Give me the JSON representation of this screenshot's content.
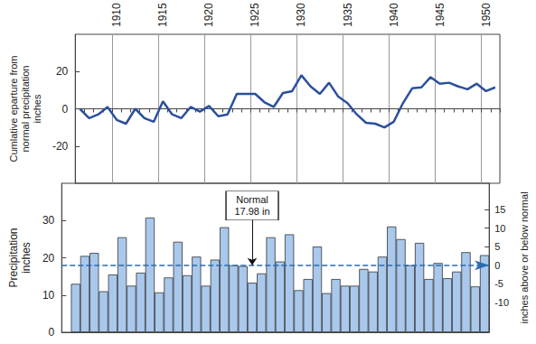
{
  "chart_data": [
    {
      "type": "line",
      "ylabel": "Cumlative eparture from\nnormal precipitation\ninches",
      "categories": [
        1906,
        1907,
        1908,
        1909,
        1910,
        1911,
        1912,
        1913,
        1914,
        1915,
        1916,
        1917,
        1918,
        1919,
        1920,
        1921,
        1922,
        1923,
        1924,
        1925,
        1926,
        1927,
        1928,
        1929,
        1930,
        1931,
        1932,
        1933,
        1934,
        1935,
        1936,
        1937,
        1938,
        1939,
        1940,
        1941,
        1942,
        1943,
        1944,
        1945,
        1946,
        1947,
        1948,
        1949,
        1950,
        1951
      ],
      "values": [
        0,
        -5,
        -3,
        1,
        -6,
        -8,
        0,
        -5,
        -7,
        4,
        -3,
        -5,
        1,
        -1.5,
        1.5,
        -4,
        -3,
        8,
        8,
        8,
        3.5,
        1,
        8.5,
        9.5,
        18,
        12,
        8,
        14,
        6.5,
        3,
        -3,
        -7.5,
        -8,
        -10,
        -7,
        3,
        11,
        11.5,
        17,
        13.5,
        14,
        12,
        10.5,
        13.5,
        9.5,
        11.5
      ],
      "color": "#2b4f9e",
      "xticks": [
        1910,
        1915,
        1920,
        1925,
        1930,
        1935,
        1940,
        1945,
        1950
      ],
      "ylim": [
        -40,
        40
      ],
      "yticks": [
        -20,
        0,
        20
      ],
      "grid": true
    },
    {
      "type": "bar",
      "ylabel": "Precipitation\ninches",
      "y2label": "inches above or below normal",
      "categories": [
        1907,
        1908,
        1909,
        1910,
        1911,
        1912,
        1913,
        1914,
        1915,
        1916,
        1917,
        1918,
        1919,
        1920,
        1921,
        1922,
        1923,
        1924,
        1925,
        1926,
        1927,
        1928,
        1929,
        1930,
        1931,
        1932,
        1933,
        1934,
        1935,
        1936,
        1937,
        1938,
        1939,
        1940,
        1941,
        1942,
        1943,
        1944,
        1945,
        1946,
        1947,
        1948,
        1949,
        1950,
        1951
      ],
      "values": [
        13,
        20.5,
        21.3,
        11,
        15.5,
        25.5,
        12.5,
        16,
        30.8,
        10.7,
        14.7,
        24.3,
        15.3,
        20.3,
        12.5,
        19.5,
        28.2,
        18,
        17.8,
        13.3,
        15.8,
        25.5,
        19,
        26.3,
        11.3,
        14.3,
        23,
        10.5,
        14.3,
        12.5,
        12.5,
        17,
        16.3,
        20.3,
        28.4,
        25,
        18,
        24,
        14.3,
        18.6,
        14.5,
        16.3,
        21.5,
        12.3,
        20.7
      ],
      "color": "#a9c8ec",
      "ylim": [
        0,
        40
      ],
      "yticks": [
        0,
        10,
        20,
        30
      ],
      "y2lim": [
        -17.98,
        22.02
      ],
      "y2ticks": [
        -10,
        -5,
        0,
        5,
        10,
        15
      ],
      "normal": 17.98,
      "annotation": {
        "text": "Normal\n17.98 in",
        "x": 1926,
        "y": 34
      },
      "tick_labels": "y"
    }
  ]
}
